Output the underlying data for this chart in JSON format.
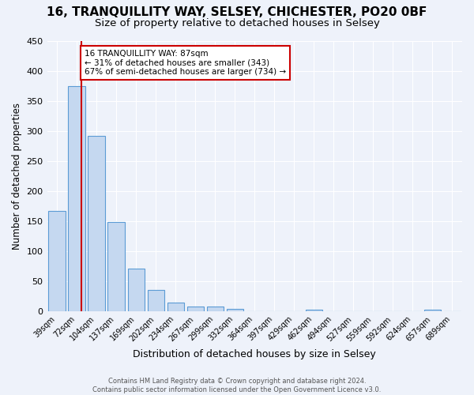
{
  "title": "16, TRANQUILLITY WAY, SELSEY, CHICHESTER, PO20 0BF",
  "subtitle": "Size of property relative to detached houses in Selsey",
  "xlabel": "Distribution of detached houses by size in Selsey",
  "ylabel": "Number of detached properties",
  "footer_line1": "Contains HM Land Registry data © Crown copyright and database right 2024.",
  "footer_line2": "Contains public sector information licensed under the Open Government Licence v3.0.",
  "categories": [
    "39sqm",
    "72sqm",
    "104sqm",
    "137sqm",
    "169sqm",
    "202sqm",
    "234sqm",
    "267sqm",
    "299sqm",
    "332sqm",
    "364sqm",
    "397sqm",
    "429sqm",
    "462sqm",
    "494sqm",
    "527sqm",
    "559sqm",
    "592sqm",
    "624sqm",
    "657sqm",
    "689sqm"
  ],
  "values": [
    167,
    374,
    291,
    148,
    71,
    35,
    14,
    8,
    7,
    4,
    0,
    0,
    0,
    3,
    0,
    0,
    0,
    0,
    0,
    3,
    0
  ],
  "bar_color": "#c5d8f0",
  "bar_edge_color": "#5b9bd5",
  "annotation_text_line1": "16 TRANQUILLITY WAY: 87sqm",
  "annotation_text_line2": "← 31% of detached houses are smaller (343)",
  "annotation_text_line3": "67% of semi-detached houses are larger (734) →",
  "red_line_color": "#cc0000",
  "annotation_box_color": "#ffffff",
  "annotation_box_edge": "#cc0000",
  "ylim": [
    0,
    450
  ],
  "yticks": [
    0,
    50,
    100,
    150,
    200,
    250,
    300,
    350,
    400,
    450
  ],
  "background_color": "#eef2fa",
  "grid_color": "#ffffff",
  "title_fontsize": 11,
  "subtitle_fontsize": 9.5,
  "red_line_x": 1.25
}
